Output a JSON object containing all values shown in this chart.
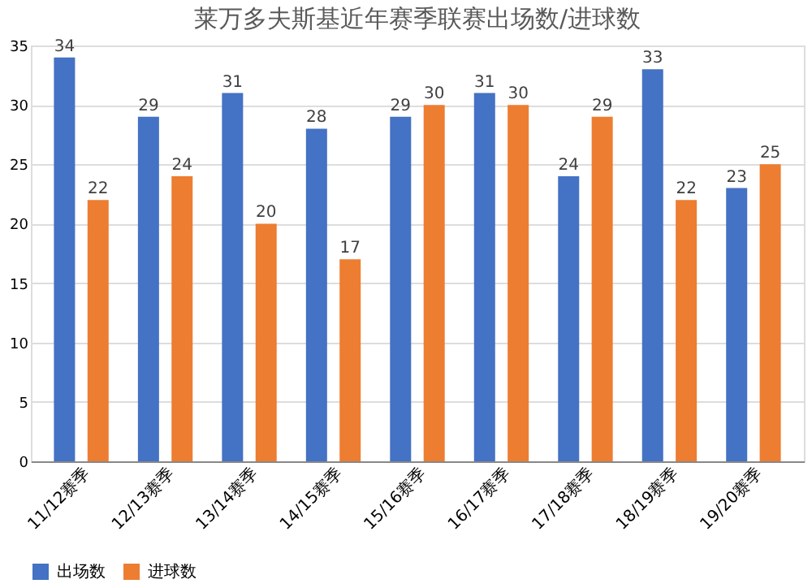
{
  "chart_data": {
    "type": "bar",
    "title": "莱万多夫斯基近年赛季联赛出场数/进球数",
    "categories": [
      "11/12赛季",
      "12/13赛季",
      "13/14赛季",
      "14/15赛季",
      "15/16赛季",
      "16/17赛季",
      "17/18赛季",
      "18/19赛季",
      "19/20赛季"
    ],
    "series": [
      {
        "name": "出场数",
        "color": "#4472c4",
        "values": [
          34,
          29,
          31,
          28,
          29,
          31,
          24,
          33,
          23
        ]
      },
      {
        "name": "进球数",
        "color": "#ed7d31",
        "values": [
          22,
          24,
          20,
          17,
          30,
          30,
          29,
          22,
          25
        ]
      }
    ],
    "ylim": [
      0,
      35
    ],
    "yticks": [
      0,
      5,
      10,
      15,
      20,
      25,
      30,
      35
    ],
    "grid": "y",
    "legend": "bottom",
    "data_labels": true
  }
}
